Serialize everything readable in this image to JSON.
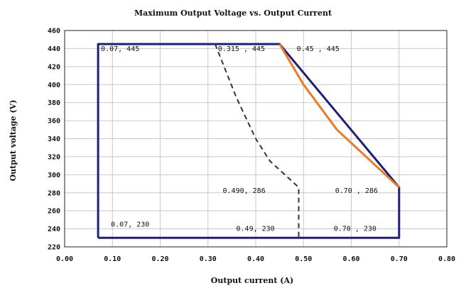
{
  "chart_data": {
    "type": "line",
    "title": "Maximum Output Voltage vs. Output Current",
    "xlabel": "Output current (A)",
    "ylabel": "Output voltage (V)",
    "xlim": [
      0.0,
      0.8
    ],
    "ylim": [
      220,
      460
    ],
    "xticks": [
      "0.00",
      "0.10",
      "0.20",
      "0.30",
      "0.40",
      "0.50",
      "0.60",
      "0.70",
      "0.80"
    ],
    "yticks": [
      "220",
      "240",
      "260",
      "280",
      "300",
      "320",
      "340",
      "360",
      "380",
      "400",
      "420",
      "440",
      "460"
    ],
    "grid": true,
    "series": [
      {
        "color": "#1f1f7a",
        "style": "solid",
        "points": [
          [
            0.07,
            230
          ],
          [
            0.07,
            445
          ],
          [
            0.45,
            445
          ],
          [
            0.45,
            445
          ],
          [
            0.7,
            286
          ],
          [
            0.7,
            230
          ],
          [
            0.07,
            230
          ]
        ]
      },
      {
        "color": "#ee7a22",
        "style": "solid",
        "points": [
          [
            0.45,
            445
          ],
          [
            0.5,
            400
          ],
          [
            0.57,
            350
          ],
          [
            0.7,
            286
          ]
        ]
      },
      {
        "color": "#333333",
        "style": "dashed",
        "points": [
          [
            0.315,
            445
          ],
          [
            0.33,
            425
          ],
          [
            0.36,
            385
          ],
          [
            0.4,
            340
          ],
          [
            0.43,
            315
          ],
          [
            0.49,
            286
          ],
          [
            0.49,
            230
          ]
        ]
      }
    ],
    "annotations": [
      {
        "text": "0.07, 445",
        "x": 0.07,
        "y": 445
      },
      {
        "text": "0.315 , 445",
        "x": 0.315,
        "y": 445
      },
      {
        "text": "0.45 , 445",
        "x": 0.45,
        "y": 445
      },
      {
        "text": "0.490, 286",
        "x": 0.49,
        "y": 286
      },
      {
        "text": "0.70 , 286",
        "x": 0.7,
        "y": 286
      },
      {
        "text": "0.07, 230",
        "x": 0.07,
        "y": 230
      },
      {
        "text": "0.49, 230",
        "x": 0.49,
        "y": 230
      },
      {
        "text": "0.70 , 230",
        "x": 0.7,
        "y": 230
      }
    ]
  }
}
